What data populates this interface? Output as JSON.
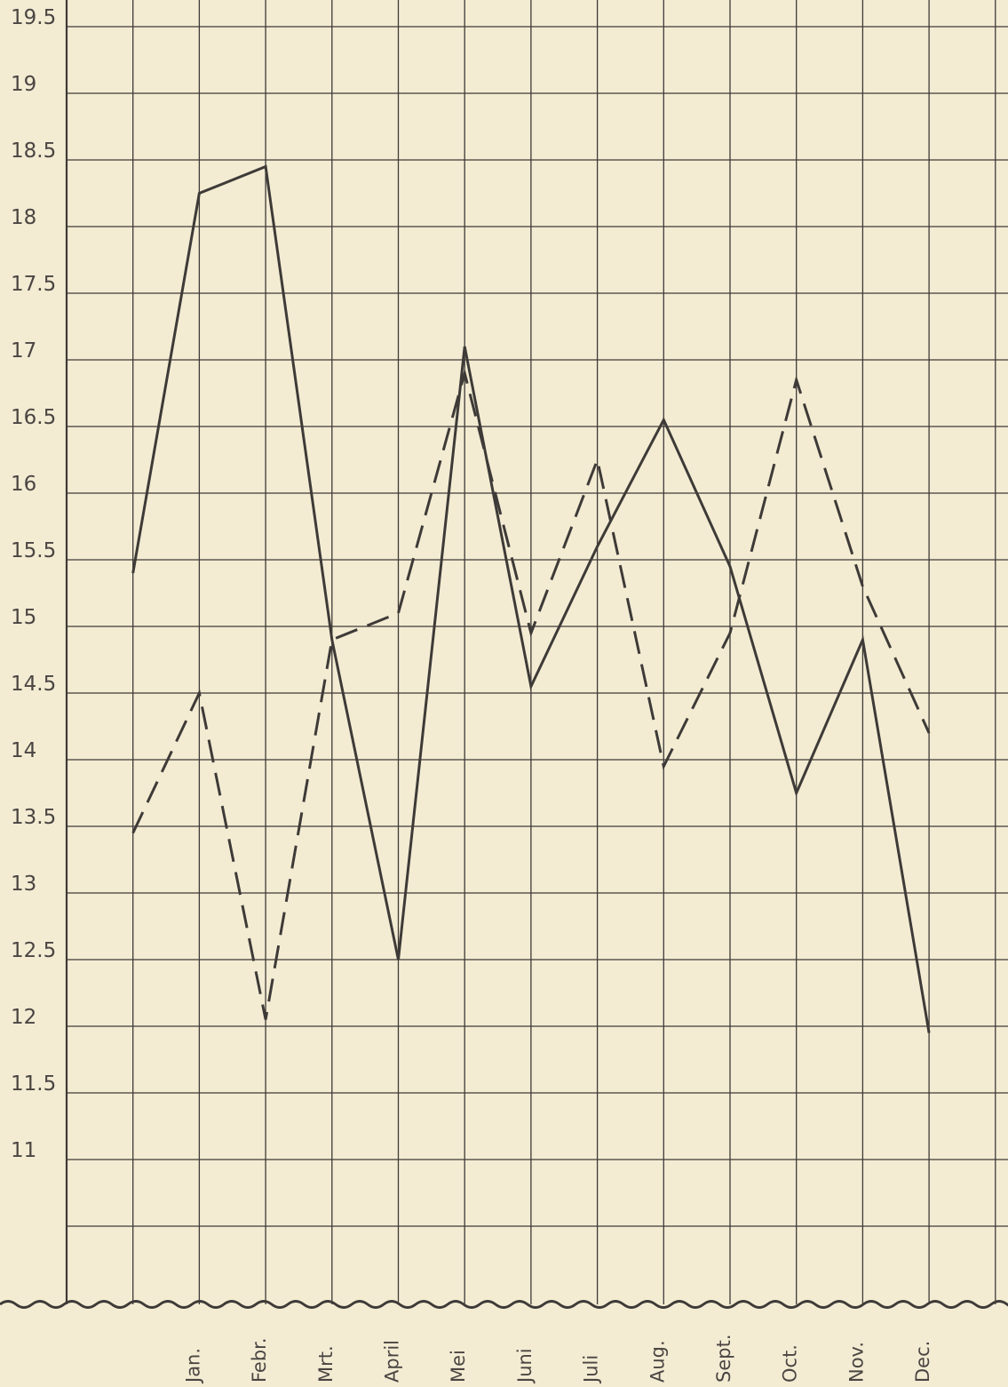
{
  "chart_data": {
    "type": "line",
    "categories": [
      "Jan.",
      "Febr.",
      "Mrt.",
      "April",
      "Mei",
      "Juni",
      "Juli",
      "Aug.",
      "Sept.",
      "Oct.",
      "Nov.",
      "Dec."
    ],
    "x_start_value": 15.4,
    "series": [
      {
        "style": "solid",
        "start_value": 15.4,
        "values": [
          18.25,
          18.45,
          14.9,
          12.5,
          17.1,
          14.55,
          15.6,
          16.55,
          15.45,
          13.75,
          14.9,
          11.95
        ]
      },
      {
        "style": "dashed",
        "start_value": 13.45,
        "values": [
          14.5,
          12.05,
          14.9,
          15.1,
          16.9,
          14.95,
          16.25,
          13.95,
          14.95,
          16.85,
          15.3,
          14.2
        ]
      }
    ],
    "y_ticks": [
      "19.5",
      "19",
      "18.5",
      "18",
      "17.5",
      "17",
      "16.5",
      "16",
      "15.5",
      "15",
      "14.5",
      "14",
      "13.5",
      "13",
      "12.5",
      "12",
      "11.5",
      "11"
    ],
    "ylim": [
      10.25,
      19.75
    ],
    "grid": true,
    "colors": {
      "background": "#f3ecd3",
      "ink": "#3e3a37"
    }
  }
}
